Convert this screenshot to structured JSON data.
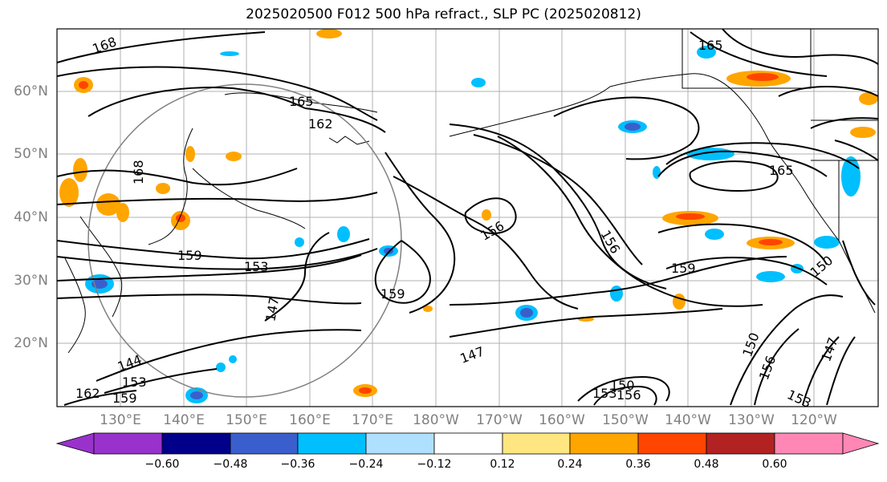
{
  "title": "2025020500 F012 500 hPa refract., SLP PC (2025020812)",
  "map": {
    "lat_labels": [
      "60°N",
      "50°N",
      "40°N",
      "30°N",
      "20°N"
    ],
    "lon_labels": [
      "130°E",
      "140°E",
      "150°E",
      "160°E",
      "170°E",
      "180°W",
      "170°W",
      "160°W",
      "150°W",
      "140°W",
      "130°W",
      "120°W"
    ],
    "contour_labels": [
      "168",
      "165",
      "162",
      "168",
      "159",
      "153",
      "147",
      "159",
      "156",
      "156",
      "159",
      "165",
      "150",
      "144",
      "153",
      "159",
      "162",
      "147",
      "150",
      "153",
      "156",
      "150",
      "156",
      "147",
      "153",
      "165"
    ]
  },
  "colorbar": {
    "ticks": [
      "−0.60",
      "−0.48",
      "−0.36",
      "−0.24",
      "−0.12",
      "0.12",
      "0.24",
      "0.36",
      "0.48",
      "0.60"
    ],
    "colors": [
      "#9932cc",
      "#00008b",
      "#3a5fcd",
      "#00bfff",
      "#afe0ff",
      "#ffffff",
      "#ffe680",
      "#ffa500",
      "#ff4500",
      "#b22222",
      "#ff87b5"
    ]
  }
}
